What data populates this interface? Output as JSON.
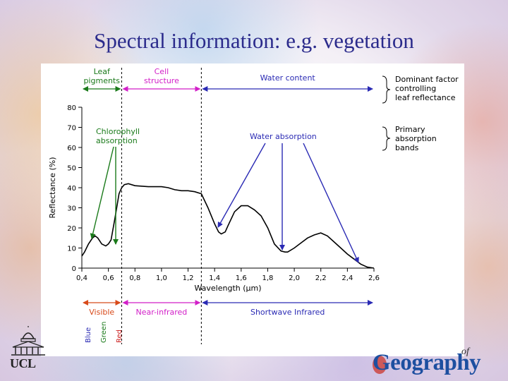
{
  "slide": {
    "title": "Spectral information: e.g. vegetation",
    "logo_left": "UCL",
    "logo_right": "Geography",
    "logo_right_small": "of"
  },
  "chart_data": {
    "type": "line",
    "xlabel": "Wavelength (µm)",
    "ylabel": "Reflectance (%)",
    "xlim": [
      0.4,
      2.6
    ],
    "ylim": [
      0,
      80
    ],
    "x_ticks": [
      "0,4",
      "0,6",
      "0,8",
      "1,0",
      "1,2",
      "1,4",
      "1,6",
      "1,8",
      "2,0",
      "2,2",
      "2,4",
      "2,6"
    ],
    "y_ticks": [
      "0",
      "10",
      "20",
      "30",
      "40",
      "50",
      "60",
      "70",
      "80"
    ],
    "series": [
      {
        "x": [
          0.4,
          0.42,
          0.45,
          0.48,
          0.5,
          0.52,
          0.55,
          0.58,
          0.6,
          0.62,
          0.65,
          0.68,
          0.7,
          0.72,
          0.75,
          0.8,
          0.9,
          1.0,
          1.05,
          1.1,
          1.15,
          1.2,
          1.25,
          1.3,
          1.35,
          1.4,
          1.43,
          1.45,
          1.48,
          1.5,
          1.55,
          1.6,
          1.65,
          1.7,
          1.75,
          1.8,
          1.85,
          1.9,
          1.93,
          1.95,
          2.0,
          2.05,
          2.1,
          2.15,
          2.2,
          2.25,
          2.3,
          2.35,
          2.4,
          2.45,
          2.5,
          2.55,
          2.6
        ],
        "y": [
          6,
          8,
          12,
          15,
          16,
          15,
          12,
          11,
          12,
          14,
          25,
          37,
          40,
          41.5,
          42,
          41,
          40.5,
          40.5,
          40,
          39,
          38.5,
          38.5,
          38,
          37,
          30,
          22,
          18,
          17,
          18,
          21,
          28,
          31,
          31,
          29,
          26,
          20,
          12,
          8.5,
          8,
          8,
          10,
          12.5,
          15,
          16.5,
          17.5,
          16,
          13,
          10,
          7,
          4.5,
          2,
          0.5,
          0
        ]
      }
    ],
    "controlling_factors": [
      {
        "label_lines": [
          "Leaf",
          "pigments"
        ],
        "color": "#1a7a1a",
        "x_range": [
          0.4,
          0.7
        ]
      },
      {
        "label_lines": [
          "Cell",
          "structure"
        ],
        "color": "#d21fc8",
        "x_range": [
          0.7,
          1.3
        ]
      },
      {
        "label_lines": [
          "Water content"
        ],
        "color": "#2a2ab4",
        "x_range": [
          1.3,
          2.6
        ]
      }
    ],
    "dominant_label_lines": [
      "Dominant factor",
      "controlling",
      "leaf reflectance"
    ],
    "primary_label_lines": [
      "Primary",
      "absorption",
      "bands"
    ],
    "chlorophyll_label_lines": [
      "Chlorophyll",
      "absorption"
    ],
    "chlorophyll_color": "#1a7a1a",
    "water_absorption_label": "Water absorption",
    "water_color": "#2a2ab4",
    "regions": [
      {
        "label": "Visible",
        "color": "#d84a1a",
        "x_range": [
          0.4,
          0.7
        ]
      },
      {
        "label": "Near-infrared",
        "color": "#d21fc8",
        "x_range": [
          0.7,
          1.3
        ]
      },
      {
        "label": "Shortwave Infrared",
        "color": "#2a2ab4",
        "x_range": [
          1.3,
          2.6
        ]
      }
    ],
    "visible_bands": [
      {
        "label": "Blue",
        "color": "#2a2ab4"
      },
      {
        "label": "Green",
        "color": "#1a7a1a"
      },
      {
        "label": "Red",
        "color": "#cc2222"
      }
    ]
  }
}
